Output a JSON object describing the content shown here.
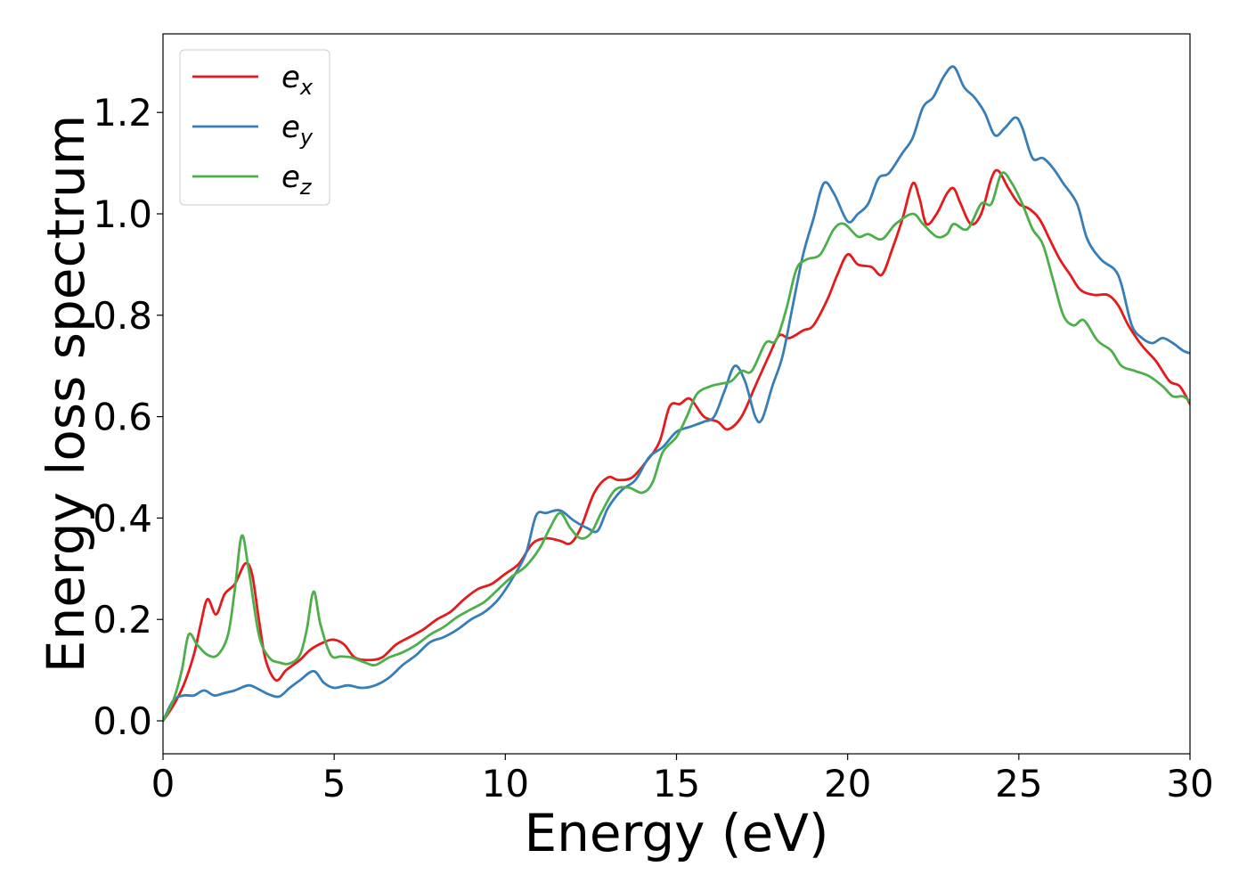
{
  "chart_data": {
    "type": "line",
    "xlabel": "Energy (eV)",
    "ylabel": "Energy loss spectrum",
    "xlim": [
      0,
      30
    ],
    "ylim": [
      -0.065,
      1.355
    ],
    "xticks": [
      0,
      5,
      10,
      15,
      20,
      25,
      30
    ],
    "xtick_labels": [
      "0",
      "5",
      "10",
      "15",
      "20",
      "25",
      "30"
    ],
    "yticks": [
      0.0,
      0.2,
      0.4,
      0.6,
      0.8,
      1.0,
      1.2
    ],
    "ytick_labels": [
      "0.0",
      "0.2",
      "0.4",
      "0.6",
      "0.8",
      "1.0",
      "1.2"
    ],
    "grid": false,
    "legend_position": "top-left",
    "series": [
      {
        "name": "e_x",
        "label_base": "e",
        "label_sub": "x",
        "color": "#e41a1c",
        "points": [
          [
            0,
            0
          ],
          [
            0.3,
            0.03
          ],
          [
            0.6,
            0.07
          ],
          [
            0.9,
            0.13
          ],
          [
            1.1,
            0.19
          ],
          [
            1.3,
            0.24
          ],
          [
            1.55,
            0.21
          ],
          [
            1.8,
            0.25
          ],
          [
            2.1,
            0.27
          ],
          [
            2.4,
            0.31
          ],
          [
            2.6,
            0.29
          ],
          [
            2.8,
            0.2
          ],
          [
            3.0,
            0.12
          ],
          [
            3.3,
            0.08
          ],
          [
            3.6,
            0.1
          ],
          [
            4.0,
            0.12
          ],
          [
            4.3,
            0.14
          ],
          [
            4.7,
            0.155
          ],
          [
            5.0,
            0.16
          ],
          [
            5.3,
            0.15
          ],
          [
            5.6,
            0.125
          ],
          [
            6.0,
            0.12
          ],
          [
            6.4,
            0.125
          ],
          [
            6.8,
            0.15
          ],
          [
            7.2,
            0.165
          ],
          [
            7.6,
            0.18
          ],
          [
            8.0,
            0.2
          ],
          [
            8.4,
            0.215
          ],
          [
            8.8,
            0.24
          ],
          [
            9.2,
            0.26
          ],
          [
            9.6,
            0.27
          ],
          [
            10.0,
            0.29
          ],
          [
            10.4,
            0.31
          ],
          [
            10.8,
            0.35
          ],
          [
            11.2,
            0.36
          ],
          [
            11.6,
            0.355
          ],
          [
            11.9,
            0.35
          ],
          [
            12.2,
            0.38
          ],
          [
            12.6,
            0.45
          ],
          [
            13.0,
            0.48
          ],
          [
            13.3,
            0.475
          ],
          [
            13.7,
            0.48
          ],
          [
            14.1,
            0.51
          ],
          [
            14.5,
            0.55
          ],
          [
            14.8,
            0.62
          ],
          [
            15.1,
            0.625
          ],
          [
            15.4,
            0.635
          ],
          [
            15.8,
            0.6
          ],
          [
            16.2,
            0.59
          ],
          [
            16.5,
            0.575
          ],
          [
            16.9,
            0.6
          ],
          [
            17.3,
            0.66
          ],
          [
            17.7,
            0.72
          ],
          [
            18.0,
            0.76
          ],
          [
            18.3,
            0.755
          ],
          [
            18.7,
            0.77
          ],
          [
            19.0,
            0.78
          ],
          [
            19.4,
            0.83
          ],
          [
            19.7,
            0.88
          ],
          [
            20.0,
            0.92
          ],
          [
            20.3,
            0.9
          ],
          [
            20.7,
            0.895
          ],
          [
            21.0,
            0.88
          ],
          [
            21.3,
            0.93
          ],
          [
            21.6,
            0.99
          ],
          [
            21.9,
            1.06
          ],
          [
            22.1,
            1.03
          ],
          [
            22.3,
            0.98
          ],
          [
            22.6,
            1.0
          ],
          [
            22.9,
            1.04
          ],
          [
            23.1,
            1.05
          ],
          [
            23.3,
            1.02
          ],
          [
            23.6,
            0.98
          ],
          [
            23.9,
            1.0
          ],
          [
            24.2,
            1.07
          ],
          [
            24.4,
            1.085
          ],
          [
            24.7,
            1.05
          ],
          [
            25.0,
            1.02
          ],
          [
            25.3,
            1.01
          ],
          [
            25.6,
            0.99
          ],
          [
            25.9,
            0.95
          ],
          [
            26.2,
            0.91
          ],
          [
            26.5,
            0.88
          ],
          [
            26.8,
            0.85
          ],
          [
            27.2,
            0.84
          ],
          [
            27.6,
            0.84
          ],
          [
            27.9,
            0.82
          ],
          [
            28.2,
            0.78
          ],
          [
            28.6,
            0.74
          ],
          [
            29.0,
            0.71
          ],
          [
            29.4,
            0.67
          ],
          [
            29.7,
            0.66
          ],
          [
            30.0,
            0.625
          ]
        ]
      },
      {
        "name": "e_y",
        "label_base": "e",
        "label_sub": "y",
        "color": "#377eb8",
        "points": [
          [
            0,
            0
          ],
          [
            0.3,
            0.04
          ],
          [
            0.6,
            0.05
          ],
          [
            0.9,
            0.05
          ],
          [
            1.2,
            0.06
          ],
          [
            1.5,
            0.05
          ],
          [
            1.8,
            0.055
          ],
          [
            2.1,
            0.06
          ],
          [
            2.5,
            0.07
          ],
          [
            2.8,
            0.062
          ],
          [
            3.1,
            0.052
          ],
          [
            3.4,
            0.048
          ],
          [
            3.7,
            0.065
          ],
          [
            4.0,
            0.08
          ],
          [
            4.4,
            0.098
          ],
          [
            4.7,
            0.075
          ],
          [
            5.0,
            0.065
          ],
          [
            5.4,
            0.07
          ],
          [
            5.8,
            0.065
          ],
          [
            6.2,
            0.07
          ],
          [
            6.6,
            0.085
          ],
          [
            7.0,
            0.11
          ],
          [
            7.4,
            0.13
          ],
          [
            7.8,
            0.155
          ],
          [
            8.2,
            0.165
          ],
          [
            8.6,
            0.18
          ],
          [
            9.0,
            0.2
          ],
          [
            9.4,
            0.215
          ],
          [
            9.8,
            0.24
          ],
          [
            10.2,
            0.28
          ],
          [
            10.6,
            0.33
          ],
          [
            10.9,
            0.405
          ],
          [
            11.2,
            0.41
          ],
          [
            11.6,
            0.415
          ],
          [
            12.0,
            0.395
          ],
          [
            12.4,
            0.38
          ],
          [
            12.7,
            0.375
          ],
          [
            13.0,
            0.42
          ],
          [
            13.4,
            0.455
          ],
          [
            13.8,
            0.475
          ],
          [
            14.2,
            0.52
          ],
          [
            14.6,
            0.54
          ],
          [
            15.0,
            0.57
          ],
          [
            15.4,
            0.58
          ],
          [
            15.8,
            0.59
          ],
          [
            16.1,
            0.6
          ],
          [
            16.4,
            0.65
          ],
          [
            16.7,
            0.7
          ],
          [
            17.0,
            0.67
          ],
          [
            17.3,
            0.6
          ],
          [
            17.5,
            0.595
          ],
          [
            17.8,
            0.66
          ],
          [
            18.1,
            0.72
          ],
          [
            18.4,
            0.82
          ],
          [
            18.7,
            0.92
          ],
          [
            19.0,
            0.99
          ],
          [
            19.3,
            1.06
          ],
          [
            19.6,
            1.04
          ],
          [
            20.0,
            0.985
          ],
          [
            20.3,
            1.0
          ],
          [
            20.6,
            1.02
          ],
          [
            20.9,
            1.07
          ],
          [
            21.2,
            1.08
          ],
          [
            21.6,
            1.12
          ],
          [
            21.9,
            1.15
          ],
          [
            22.2,
            1.21
          ],
          [
            22.5,
            1.23
          ],
          [
            22.8,
            1.27
          ],
          [
            23.1,
            1.29
          ],
          [
            23.4,
            1.25
          ],
          [
            23.7,
            1.23
          ],
          [
            24.0,
            1.2
          ],
          [
            24.3,
            1.155
          ],
          [
            24.6,
            1.17
          ],
          [
            24.9,
            1.19
          ],
          [
            25.1,
            1.17
          ],
          [
            25.4,
            1.11
          ],
          [
            25.7,
            1.11
          ],
          [
            26.0,
            1.09
          ],
          [
            26.3,
            1.06
          ],
          [
            26.7,
            1.02
          ],
          [
            27.0,
            0.95
          ],
          [
            27.4,
            0.91
          ],
          [
            27.8,
            0.89
          ],
          [
            28.0,
            0.86
          ],
          [
            28.3,
            0.78
          ],
          [
            28.6,
            0.755
          ],
          [
            28.9,
            0.745
          ],
          [
            29.2,
            0.755
          ],
          [
            29.5,
            0.745
          ],
          [
            29.8,
            0.73
          ],
          [
            30.0,
            0.725
          ]
        ]
      },
      {
        "name": "e_z",
        "label_base": "e",
        "label_sub": "z",
        "color": "#4daf4a",
        "points": [
          [
            0,
            0
          ],
          [
            0.3,
            0.04
          ],
          [
            0.55,
            0.1
          ],
          [
            0.75,
            0.17
          ],
          [
            1.0,
            0.15
          ],
          [
            1.3,
            0.13
          ],
          [
            1.6,
            0.13
          ],
          [
            1.9,
            0.17
          ],
          [
            2.1,
            0.26
          ],
          [
            2.3,
            0.365
          ],
          [
            2.5,
            0.3
          ],
          [
            2.8,
            0.17
          ],
          [
            3.1,
            0.125
          ],
          [
            3.4,
            0.115
          ],
          [
            3.7,
            0.113
          ],
          [
            4.0,
            0.13
          ],
          [
            4.2,
            0.18
          ],
          [
            4.4,
            0.255
          ],
          [
            4.6,
            0.19
          ],
          [
            4.9,
            0.13
          ],
          [
            5.2,
            0.127
          ],
          [
            5.5,
            0.125
          ],
          [
            5.9,
            0.115
          ],
          [
            6.2,
            0.11
          ],
          [
            6.6,
            0.125
          ],
          [
            7.0,
            0.135
          ],
          [
            7.4,
            0.15
          ],
          [
            7.8,
            0.17
          ],
          [
            8.2,
            0.185
          ],
          [
            8.6,
            0.205
          ],
          [
            9.0,
            0.22
          ],
          [
            9.4,
            0.235
          ],
          [
            9.8,
            0.26
          ],
          [
            10.2,
            0.285
          ],
          [
            10.6,
            0.305
          ],
          [
            11.0,
            0.34
          ],
          [
            11.3,
            0.38
          ],
          [
            11.6,
            0.41
          ],
          [
            11.9,
            0.38
          ],
          [
            12.2,
            0.36
          ],
          [
            12.5,
            0.37
          ],
          [
            12.8,
            0.41
          ],
          [
            13.2,
            0.455
          ],
          [
            13.6,
            0.46
          ],
          [
            14.0,
            0.45
          ],
          [
            14.3,
            0.47
          ],
          [
            14.6,
            0.53
          ],
          [
            15.0,
            0.56
          ],
          [
            15.3,
            0.6
          ],
          [
            15.6,
            0.645
          ],
          [
            16.0,
            0.66
          ],
          [
            16.3,
            0.665
          ],
          [
            16.6,
            0.67
          ],
          [
            16.9,
            0.69
          ],
          [
            17.2,
            0.69
          ],
          [
            17.6,
            0.745
          ],
          [
            17.9,
            0.75
          ],
          [
            18.2,
            0.81
          ],
          [
            18.5,
            0.89
          ],
          [
            18.8,
            0.91
          ],
          [
            19.2,
            0.92
          ],
          [
            19.6,
            0.97
          ],
          [
            19.9,
            0.98
          ],
          [
            20.3,
            0.955
          ],
          [
            20.6,
            0.96
          ],
          [
            21.0,
            0.95
          ],
          [
            21.4,
            0.98
          ],
          [
            21.9,
            1.0
          ],
          [
            22.2,
            0.98
          ],
          [
            22.6,
            0.955
          ],
          [
            22.9,
            0.96
          ],
          [
            23.1,
            0.98
          ],
          [
            23.5,
            0.97
          ],
          [
            23.9,
            1.02
          ],
          [
            24.2,
            1.02
          ],
          [
            24.5,
            1.08
          ],
          [
            24.8,
            1.06
          ],
          [
            25.1,
            1.02
          ],
          [
            25.4,
            0.97
          ],
          [
            25.7,
            0.94
          ],
          [
            26.0,
            0.87
          ],
          [
            26.3,
            0.8
          ],
          [
            26.6,
            0.78
          ],
          [
            26.9,
            0.79
          ],
          [
            27.3,
            0.75
          ],
          [
            27.7,
            0.73
          ],
          [
            28.0,
            0.7
          ],
          [
            28.4,
            0.69
          ],
          [
            28.8,
            0.68
          ],
          [
            29.2,
            0.66
          ],
          [
            29.5,
            0.64
          ],
          [
            29.8,
            0.64
          ],
          [
            30.0,
            0.63
          ]
        ]
      }
    ]
  }
}
